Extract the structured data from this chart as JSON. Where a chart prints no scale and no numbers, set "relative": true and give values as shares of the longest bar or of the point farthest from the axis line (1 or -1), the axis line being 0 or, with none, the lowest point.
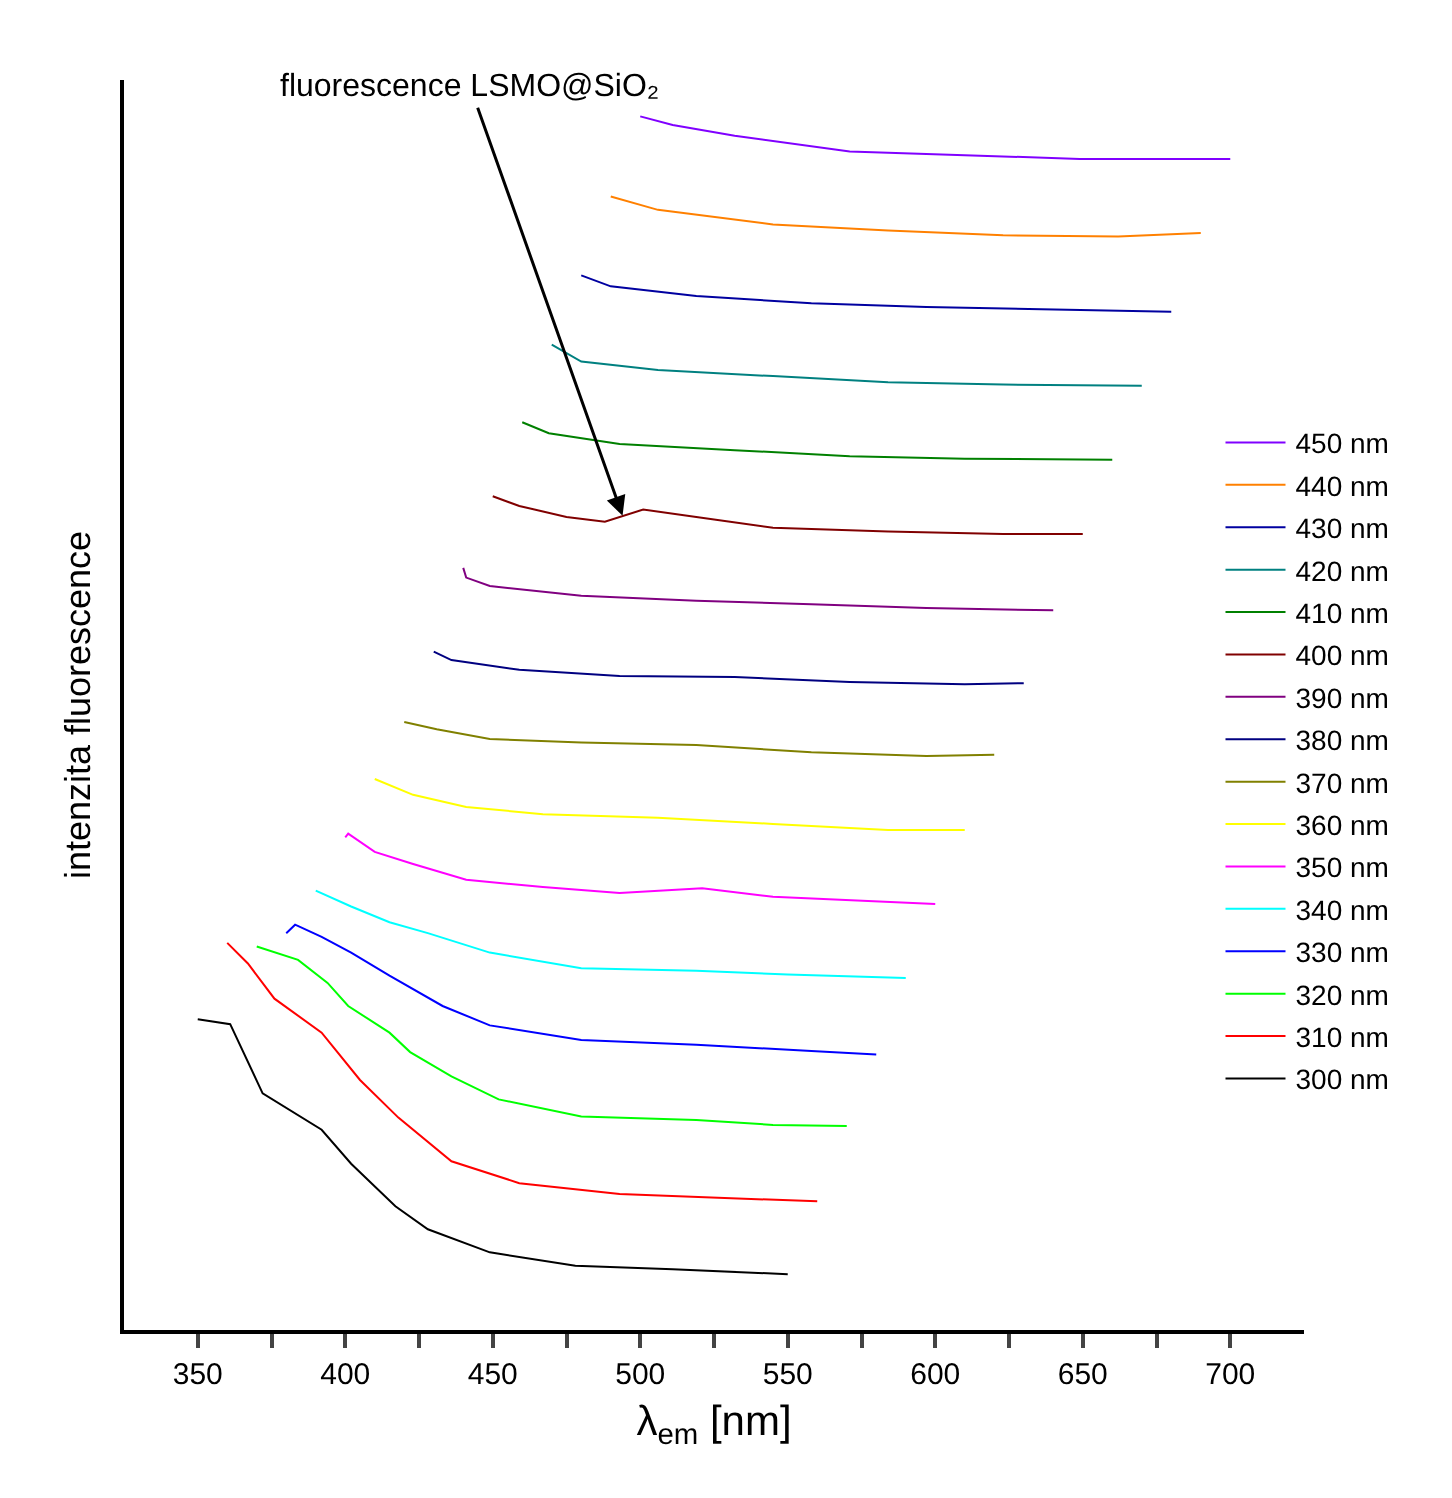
{
  "chart_data": {
    "type": "line",
    "relative": true,
    "xlabel": "λ$_{em}$ [nm]",
    "ylabel": "intenzita fluorescence",
    "xlim": [
      325,
      725
    ],
    "xticks": [
      350,
      {
        "value": 375,
        "label": null
      },
      400,
      {
        "value": 425,
        "label": null
      },
      450,
      {
        "value": 475,
        "label": null
      },
      500,
      {
        "value": 525,
        "label": null
      },
      550,
      {
        "value": 575,
        "label": null
      },
      600,
      {
        "value": 625,
        "label": null
      },
      650,
      {
        "value": 675,
        "label": null
      },
      700
    ],
    "legend": "right",
    "marker": "none",
    "line_style": "solid",
    "annotations": [
      {
        "text": "fluorescence LSMO@SiO₂",
        "x": 494,
        "y": 0.671
      }
    ],
    "series": [
      {
        "name": "450 nm",
        "color": "#8000ff",
        "x": [
          500,
          511,
          532,
          571,
          610,
          649,
          700
        ],
        "values": [
          1.0,
          0.993,
          0.984,
          0.971,
          0.968,
          0.965,
          0.965
        ]
      },
      {
        "name": "440 nm",
        "color": "#ff8000",
        "x": [
          490,
          506,
          545,
          584,
          623,
          662,
          690
        ],
        "values": [
          0.934,
          0.923,
          0.911,
          0.906,
          0.902,
          0.901,
          0.904
        ]
      },
      {
        "name": "430 nm",
        "color": "#0000a0",
        "x": [
          480,
          490,
          519,
          558,
          597,
          636,
          680
        ],
        "values": [
          0.869,
          0.86,
          0.852,
          0.846,
          0.843,
          0.841,
          0.839
        ]
      },
      {
        "name": "420 nm",
        "color": "#008080",
        "x": [
          470,
          480,
          506,
          545,
          584,
          623,
          670
        ],
        "values": [
          0.812,
          0.798,
          0.791,
          0.786,
          0.781,
          0.779,
          0.778
        ]
      },
      {
        "name": "410 nm",
        "color": "#008000",
        "x": [
          460,
          469,
          493,
          532,
          571,
          610,
          660
        ],
        "values": [
          0.748,
          0.739,
          0.73,
          0.725,
          0.72,
          0.718,
          0.717
        ]
      },
      {
        "name": "400 nm",
        "color": "#800000",
        "x": [
          450,
          459,
          475,
          488,
          501,
          519,
          545,
          584,
          623,
          650
        ],
        "values": [
          0.687,
          0.679,
          0.67,
          0.666,
          0.676,
          0.67,
          0.661,
          0.658,
          0.656,
          0.656
        ]
      },
      {
        "name": "390 nm",
        "color": "#800080",
        "x": [
          440,
          441,
          449,
          480,
          519,
          558,
          597,
          640
        ],
        "values": [
          0.628,
          0.62,
          0.613,
          0.605,
          0.601,
          0.598,
          0.595,
          0.593
        ]
      },
      {
        "name": "380 nm",
        "color": "#000080",
        "x": [
          430,
          436,
          459,
          493,
          532,
          571,
          610,
          630
        ],
        "values": [
          0.559,
          0.552,
          0.544,
          0.539,
          0.538,
          0.534,
          0.532,
          0.533
        ]
      },
      {
        "name": "370 nm",
        "color": "#808000",
        "x": [
          420,
          431,
          449,
          480,
          519,
          558,
          597,
          620
        ],
        "values": [
          0.501,
          0.495,
          0.487,
          0.484,
          0.482,
          0.476,
          0.473,
          0.474
        ]
      },
      {
        "name": "360 nm",
        "color": "#ffff00",
        "x": [
          410,
          423,
          441,
          467,
          506,
          545,
          584,
          610
        ],
        "values": [
          0.454,
          0.441,
          0.431,
          0.425,
          0.422,
          0.417,
          0.412,
          0.412
        ]
      },
      {
        "name": "350 nm",
        "color": "#ff00ff",
        "x": [
          400,
          401,
          410,
          423,
          441,
          467,
          493,
          521,
          545,
          600
        ],
        "values": [
          0.406,
          0.409,
          0.394,
          0.384,
          0.371,
          0.365,
          0.36,
          0.364,
          0.357,
          0.351
        ]
      },
      {
        "name": "340 nm",
        "color": "#00ffff",
        "x": [
          390,
          402,
          415,
          428,
          449,
          480,
          519,
          550,
          590
        ],
        "values": [
          0.362,
          0.349,
          0.336,
          0.327,
          0.311,
          0.298,
          0.296,
          0.293,
          0.29
        ]
      },
      {
        "name": "330 nm",
        "color": "#0000ff",
        "x": [
          380,
          383,
          392,
          402,
          415,
          433,
          449,
          480,
          519,
          558,
          580
        ],
        "values": [
          0.327,
          0.334,
          0.324,
          0.311,
          0.292,
          0.267,
          0.251,
          0.239,
          0.235,
          0.23,
          0.227
        ]
      },
      {
        "name": "320 nm",
        "color": "#00ff00",
        "x": [
          370,
          384,
          394,
          401,
          415,
          422,
          436,
          452,
          480,
          519,
          545,
          570
        ],
        "values": [
          0.316,
          0.305,
          0.286,
          0.267,
          0.245,
          0.229,
          0.209,
          0.19,
          0.176,
          0.173,
          0.169,
          0.168
        ]
      },
      {
        "name": "310 nm",
        "color": "#ff0000",
        "x": [
          360,
          367,
          376,
          392,
          405,
          418,
          436,
          459,
          493,
          560
        ],
        "values": [
          0.319,
          0.302,
          0.273,
          0.245,
          0.206,
          0.175,
          0.139,
          0.121,
          0.112,
          0.106
        ]
      },
      {
        "name": "300 nm",
        "color": "#000000",
        "x": [
          350,
          361,
          372,
          392,
          402,
          417,
          428,
          449,
          478,
          511,
          550
        ],
        "values": [
          0.256,
          0.252,
          0.195,
          0.165,
          0.137,
          0.102,
          0.083,
          0.064,
          0.053,
          0.05,
          0.046
        ]
      }
    ]
  }
}
